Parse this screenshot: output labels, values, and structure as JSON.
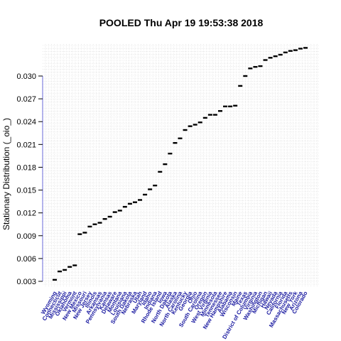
{
  "chart_data": {
    "type": "scatter",
    "title": "POOLED  Thu Apr 19 19:53:38 2018",
    "xlabel": "",
    "ylabel": "Stationary Distribution (_oio_)",
    "yticks": [
      "0.003",
      "0.006",
      "0.009",
      "0.012",
      "0.015",
      "0.018",
      "0.021",
      "0.024",
      "0.027",
      "0.030"
    ],
    "ylim": [
      0.0022,
      0.0345
    ],
    "grid": true,
    "axis_color": "#6a6ad8",
    "label_color": "#1a1aa0",
    "categories": [
      "Wyoming",
      "Connecticut",
      "Mississippi",
      "Oklahoma",
      "Vermont",
      "New Mexico",
      "Missouri",
      "New Jersey",
      "Illinois",
      "Arkansas",
      "Pennsylvania",
      "Kansas",
      "Delaware",
      "Montana",
      "Louisiana",
      "South Dakota",
      "Nebraska",
      "Utah",
      "Maryland",
      "Idaho",
      "Indiana",
      "Rhode Island",
      "Iowa",
      "North Dakota",
      "Alaska",
      "North Carolina",
      "Kentucky",
      "Georgia",
      "Ohio",
      "South Carolina",
      "Oregon",
      "West Virginia",
      "Minnesota",
      "Tennessee",
      "New Hampshire",
      "Alabama",
      "Wisconsin",
      "Maine",
      "Texas",
      "District of Columbia",
      "Virginia",
      "Washington",
      "Michigan",
      "Hawaii",
      "Nevada",
      "California",
      "Florida",
      "Massachusetts",
      "New York",
      "Arizona",
      "Colorado"
    ],
    "values": [
      0.0032,
      0.0043,
      0.0045,
      0.0049,
      0.0051,
      0.0092,
      0.0094,
      0.0102,
      0.0105,
      0.0107,
      0.0112,
      0.0115,
      0.0121,
      0.0123,
      0.0128,
      0.0132,
      0.0134,
      0.0137,
      0.0144,
      0.0151,
      0.0156,
      0.0174,
      0.0184,
      0.0198,
      0.0212,
      0.0218,
      0.0229,
      0.0234,
      0.0236,
      0.0239,
      0.0245,
      0.0249,
      0.0249,
      0.0254,
      0.026,
      0.026,
      0.0261,
      0.0287,
      0.03,
      0.031,
      0.0312,
      0.0313,
      0.0321,
      0.0324,
      0.0326,
      0.0328,
      0.0331,
      0.0333,
      0.0334,
      0.0336,
      0.0337
    ]
  }
}
